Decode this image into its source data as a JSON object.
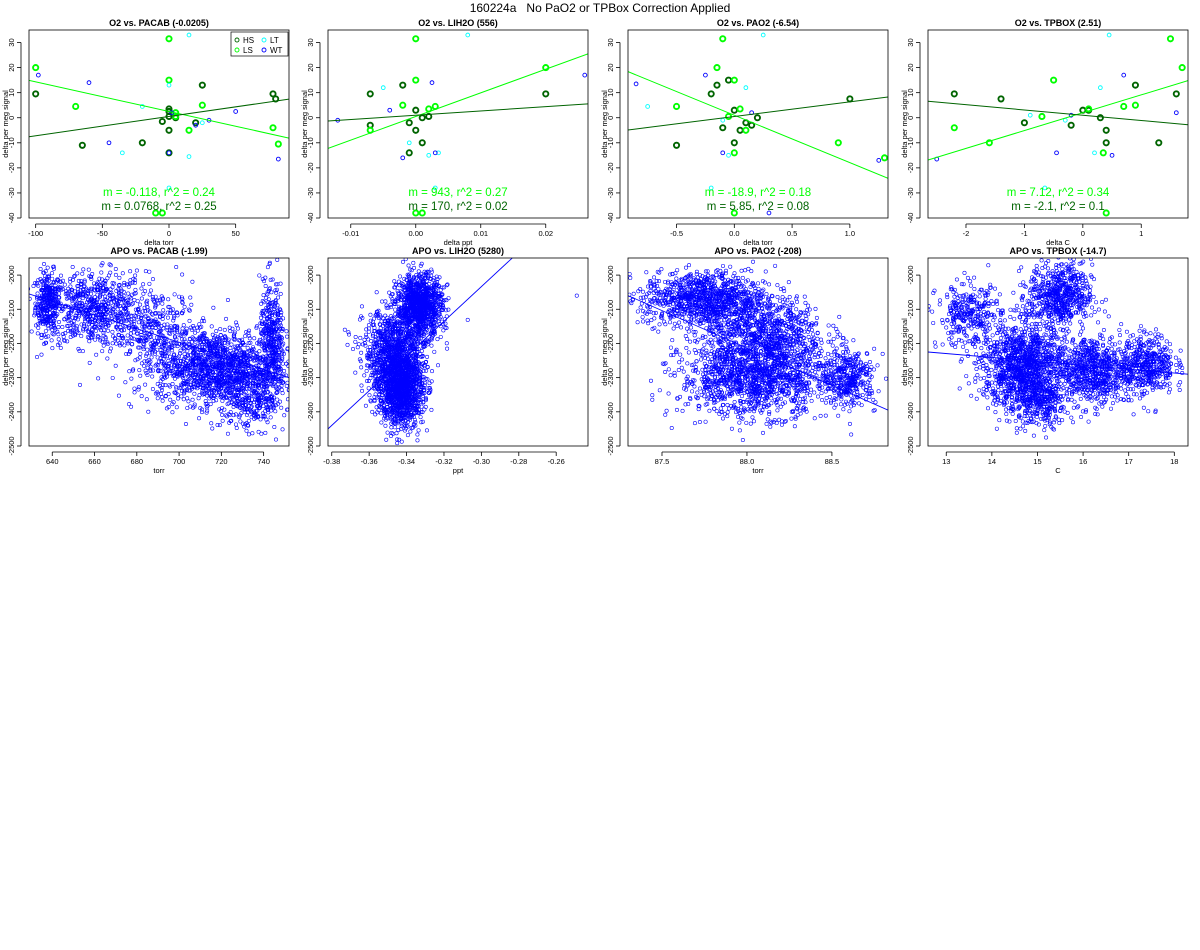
{
  "page": {
    "title": "160224a   No PaO2 or TPBox Correction Applied"
  },
  "colors": {
    "HS": "#006400",
    "LS": "#00ff00",
    "LT": "#00ffff",
    "WT": "#0000ff",
    "fit_HS": "#006400",
    "fit_LS": "#00ff00",
    "apo": "#0000ff"
  },
  "chart_data": [
    {
      "type": "scatter",
      "title": "O2 vs. PACAB (-0.0205)",
      "xlabel": "delta torr",
      "ylabel": "delta per meg signal",
      "xlim": [
        -105,
        90
      ],
      "ylim": [
        -40,
        35
      ],
      "xticks": [
        -100,
        -50,
        0,
        50
      ],
      "yticks": [
        -40,
        -30,
        -20,
        -10,
        0,
        10,
        20,
        30
      ],
      "xtick_labels": [
        "-100",
        "-50",
        "0",
        "50"
      ],
      "legend": {
        "position": "top-right",
        "entries": [
          "HS",
          "LT",
          "LS",
          "WT"
        ]
      },
      "fits": [
        {
          "label": "m = -0.118, r^2 = 0.24",
          "color": "#00ff00",
          "slope": -0.118,
          "intercept": 2.5
        },
        {
          "label": "m = 0.0768, r^2 = 0.25",
          "color": "#006400",
          "slope": 0.0768,
          "intercept": 0.5
        }
      ],
      "series": [
        {
          "name": "HS",
          "x": [
            -100,
            -65,
            -20,
            -5,
            0,
            0,
            0,
            0,
            5,
            20,
            25,
            78,
            80,
            0
          ],
          "y": [
            9.5,
            -11,
            -10,
            -1.5,
            -5,
            0.5,
            2.5,
            3.5,
            0,
            -2,
            13,
            9.5,
            7.5,
            -14
          ]
        },
        {
          "name": "LS",
          "x": [
            -100,
            -70,
            -5,
            0,
            0,
            5,
            15,
            25,
            78,
            82,
            5,
            -10
          ],
          "y": [
            20,
            4.5,
            -38,
            31.5,
            15,
            0.5,
            -5,
            5,
            -4,
            -10.5,
            2,
            -38
          ]
        },
        {
          "name": "LT",
          "x": [
            15,
            -20,
            25,
            0,
            0,
            15,
            -35
          ],
          "y": [
            33,
            4.5,
            -2,
            -28,
            13,
            -15.5,
            -14
          ]
        },
        {
          "name": "WT",
          "x": [
            -98,
            -60,
            50,
            30,
            82,
            0,
            20,
            2,
            -45
          ],
          "y": [
            17,
            14,
            2.5,
            -1,
            -16.5,
            -14,
            -3,
            2,
            -10
          ]
        }
      ]
    },
    {
      "type": "scatter",
      "title": "O2 vs. LIH2O (556)",
      "xlabel": "delta ppt",
      "ylabel": "delta per meg signal",
      "xlim": [
        -0.0135,
        0.0265
      ],
      "ylim": [
        -40,
        35
      ],
      "xticks": [
        -0.01,
        0,
        0.01,
        0.02
      ],
      "yticks": [
        -40,
        -30,
        -20,
        -10,
        0,
        10,
        20,
        30
      ],
      "xtick_labels": [
        "-0.01",
        "0.00",
        "0.01",
        "0.02"
      ],
      "fits": [
        {
          "label": "m = 943, r^2 = 0.27",
          "color": "#00ff00",
          "slope": 943,
          "intercept": 0.5
        },
        {
          "label": "m = 170, r^2 = 0.02",
          "color": "#006400",
          "slope": 170,
          "intercept": 1.0
        }
      ],
      "series": [
        {
          "name": "HS",
          "x": [
            -0.007,
            -0.002,
            -0.001,
            0,
            0,
            0.001,
            0.001,
            0.002,
            -0.001,
            0.02,
            -0.007
          ],
          "y": [
            9.5,
            13,
            -2,
            -5,
            3,
            0,
            -10,
            0.5,
            -14,
            9.5,
            -3
          ]
        },
        {
          "name": "LS",
          "x": [
            0,
            0,
            -0.002,
            0.002,
            0.003,
            0.02,
            -0.007,
            0.001,
            0
          ],
          "y": [
            31.5,
            15,
            5,
            3.5,
            4.5,
            20,
            -5,
            -38,
            -38
          ]
        },
        {
          "name": "LT",
          "x": [
            -0.005,
            0.008,
            0.002,
            -0.001,
            0.003,
            0.0035
          ],
          "y": [
            12,
            33,
            -15,
            -10,
            -28,
            -14
          ]
        },
        {
          "name": "WT",
          "x": [
            -0.012,
            -0.002,
            0.0025,
            -0.004,
            0.026,
            0.003
          ],
          "y": [
            -1,
            -16,
            14,
            3,
            17,
            -14
          ]
        }
      ]
    },
    {
      "type": "scatter",
      "title": "O2 vs. PAO2 (-6.54)",
      "xlabel": "delta torr",
      "ylabel": "delta per meg signal",
      "xlim": [
        -0.92,
        1.33
      ],
      "ylim": [
        -40,
        35
      ],
      "xticks": [
        -0.5,
        0,
        0.5,
        1.0
      ],
      "yticks": [
        -40,
        -30,
        -20,
        -10,
        0,
        10,
        20,
        30
      ],
      "xtick_labels": [
        "-0.5",
        "0.0",
        "0.5",
        "1.0"
      ],
      "fits": [
        {
          "label": "m = -18.9, r^2 = 0.18",
          "color": "#00ff00",
          "slope": -18.9,
          "intercept": 1.0
        },
        {
          "label": "m = 5.85, r^2 = 0.08",
          "color": "#006400",
          "slope": 5.85,
          "intercept": 0.5
        }
      ],
      "series": [
        {
          "name": "HS",
          "x": [
            -0.5,
            -0.15,
            -0.1,
            -0.05,
            0,
            0,
            0.05,
            0.1,
            0.15,
            0.2,
            1.0,
            -0.2
          ],
          "y": [
            -11,
            13,
            -4,
            15,
            3,
            -10,
            -5,
            -2,
            -3,
            0,
            7.5,
            9.5
          ]
        },
        {
          "name": "LS",
          "x": [
            -0.1,
            -0.5,
            -0.15,
            0,
            0,
            0.05,
            0.1,
            -0.05,
            0.9,
            1.3,
            0
          ],
          "y": [
            31.5,
            4.5,
            20,
            15,
            -14,
            3.5,
            -5,
            0.5,
            -10,
            -16,
            -38
          ]
        },
        {
          "name": "LT",
          "x": [
            -0.75,
            0.25,
            -0.2,
            0.1,
            -0.1,
            -0.05
          ],
          "y": [
            4.5,
            33,
            -28,
            12,
            -1,
            -15
          ]
        },
        {
          "name": "WT",
          "x": [
            -0.85,
            -0.25,
            -0.1,
            0.15,
            1.25,
            0.3
          ],
          "y": [
            13.5,
            17,
            -14,
            2,
            -17,
            -38
          ]
        }
      ]
    },
    {
      "type": "scatter",
      "title": "O2 vs. TPBOX (2.51)",
      "xlabel": "delta C",
      "ylabel": "delta per meg signal",
      "xlim": [
        -2.65,
        1.8
      ],
      "ylim": [
        -40,
        35
      ],
      "xticks": [
        -2,
        -1,
        0,
        1
      ],
      "yticks": [
        -40,
        -30,
        -20,
        -10,
        0,
        10,
        20,
        30
      ],
      "xtick_labels": [
        "-2",
        "-1",
        "0",
        "1"
      ],
      "fits": [
        {
          "label": "m = 7.12, r^2 = 0.34",
          "color": "#00ff00",
          "slope": 7.12,
          "intercept": 2.0
        },
        {
          "label": "m = -2.1, r^2 = 0.1",
          "color": "#006400",
          "slope": -2.1,
          "intercept": 1.0
        }
      ],
      "series": [
        {
          "name": "HS",
          "x": [
            -2.2,
            -1.4,
            -1.0,
            0,
            -0.2,
            0.3,
            0.4,
            0.4,
            0.9,
            1.3,
            1.6,
            0.1
          ],
          "y": [
            9.5,
            7.5,
            -2,
            3,
            -3,
            0,
            -5,
            -10,
            13,
            -10,
            9.5,
            3
          ]
        },
        {
          "name": "LS",
          "x": [
            1.5,
            1.7,
            -2.2,
            -1.6,
            -0.5,
            0.35,
            0.7,
            0.9,
            -0.7,
            0.1,
            0.4
          ],
          "y": [
            31.5,
            20,
            -4,
            -10,
            15,
            -14,
            4.5,
            5,
            0.5,
            3.5,
            -38
          ]
        },
        {
          "name": "LT",
          "x": [
            -0.65,
            0.45,
            0.3,
            -0.9,
            -0.3,
            0.2
          ],
          "y": [
            -28,
            33,
            12,
            1,
            -1,
            -14
          ]
        },
        {
          "name": "WT",
          "x": [
            -2.5,
            -0.45,
            0.7,
            1.6,
            0.5,
            -0.2
          ],
          "y": [
            -16.5,
            -14,
            17,
            2,
            -15,
            1
          ]
        }
      ]
    },
    {
      "type": "scatter",
      "title": "APO vs. PACAB (-1.99)",
      "xlabel": "torr",
      "ylabel": "delta per meg signal",
      "xlim": [
        629,
        752
      ],
      "ylim": [
        -2500,
        -1950
      ],
      "xticks": [
        640,
        660,
        680,
        700,
        720,
        740
      ],
      "yticks": [
        -2500,
        -2400,
        -2300,
        -2200,
        -2100,
        -2000
      ],
      "xtick_labels": [
        "640",
        "660",
        "680",
        "700",
        "720",
        "740"
      ],
      "fit_line": {
        "slope": -1.99,
        "intercept": -1.99
      },
      "clusters": [
        {
          "cx": 638,
          "cy": -2080,
          "sx": 3,
          "sy": 45,
          "n": 300
        },
        {
          "cx": 660,
          "cy": -2100,
          "sx": 12,
          "sy": 55,
          "n": 650
        },
        {
          "cx": 690,
          "cy": -2180,
          "sx": 10,
          "sy": 70,
          "n": 350
        },
        {
          "cx": 718,
          "cy": -2270,
          "sx": 14,
          "sy": 55,
          "n": 1300
        },
        {
          "cx": 744,
          "cy": -2200,
          "sx": 3,
          "sy": 90,
          "n": 400
        },
        {
          "cx": 735,
          "cy": -2370,
          "sx": 8,
          "sy": 40,
          "n": 250
        }
      ]
    },
    {
      "type": "scatter",
      "title": "APO vs. LIH2O (5280)",
      "xlabel": "ppt",
      "ylabel": "delta per meg signal",
      "xlim": [
        -0.382,
        -0.243
      ],
      "ylim": [
        -2500,
        -1950
      ],
      "xticks": [
        -0.38,
        -0.36,
        -0.34,
        -0.32,
        -0.3,
        -0.28,
        -0.26
      ],
      "yticks": [
        -2500,
        -2400,
        -2300,
        -2200,
        -2100,
        -2000
      ],
      "xtick_labels": [
        "-0.38",
        "-0.36",
        "-0.34",
        "-0.32",
        "-0.30",
        "-0.28",
        "-0.26"
      ],
      "fit_line": {
        "slope": 5280,
        "intercept": -0.342
      },
      "clusters": [
        {
          "cx": -0.333,
          "cy": -2090,
          "sx": 0.006,
          "sy": 45,
          "n": 1100
        },
        {
          "cx": -0.347,
          "cy": -2220,
          "sx": 0.008,
          "sy": 60,
          "n": 800
        },
        {
          "cx": -0.343,
          "cy": -2330,
          "sx": 0.006,
          "sy": 55,
          "n": 1300
        }
      ],
      "outliers": [
        {
          "x": -0.249,
          "y": -2060
        },
        {
          "x": -0.373,
          "y": -2160
        }
      ]
    },
    {
      "type": "scatter",
      "title": "APO vs. PAO2 (-208)",
      "xlabel": "torr",
      "ylabel": "delta per meg signal",
      "xlim": [
        87.3,
        88.83
      ],
      "ylim": [
        -2500,
        -1950
      ],
      "xticks": [
        87.5,
        88.0,
        88.5
      ],
      "yticks": [
        -2500,
        -2400,
        -2300,
        -2200,
        -2100,
        -2000
      ],
      "xtick_labels": [
        "87.5",
        "88.0",
        "88.5"
      ],
      "fit_line": {
        "slope": -208,
        "intercept": 88.05
      },
      "clusters": [
        {
          "cx": 87.75,
          "cy": -2070,
          "sx": 0.18,
          "sy": 40,
          "n": 1000
        },
        {
          "cx": 88.1,
          "cy": -2170,
          "sx": 0.18,
          "sy": 55,
          "n": 800
        },
        {
          "cx": 88.05,
          "cy": -2300,
          "sx": 0.22,
          "sy": 55,
          "n": 1300
        },
        {
          "cx": 88.6,
          "cy": -2300,
          "sx": 0.08,
          "sy": 40,
          "n": 350
        }
      ]
    },
    {
      "type": "scatter",
      "title": "APO vs. TPBOX (-14.7)",
      "xlabel": "C",
      "ylabel": "delta per meg signal",
      "xlim": [
        12.6,
        18.3
      ],
      "ylim": [
        -2500,
        -1950
      ],
      "xticks": [
        13,
        14,
        15,
        16,
        17,
        18
      ],
      "yticks": [
        -2500,
        -2400,
        -2300,
        -2200,
        -2100,
        -2000
      ],
      "xtick_labels": [
        "13",
        "14",
        "15",
        "16",
        "17",
        "18"
      ],
      "fit_line": {
        "slope": -14.7,
        "intercept": -2260
      },
      "clusters": [
        {
          "cx": 13.5,
          "cy": -2120,
          "sx": 0.35,
          "sy": 45,
          "n": 300
        },
        {
          "cx": 14.7,
          "cy": -2270,
          "sx": 0.45,
          "sy": 65,
          "n": 1300
        },
        {
          "cx": 15.5,
          "cy": -2060,
          "sx": 0.35,
          "sy": 45,
          "n": 600
        },
        {
          "cx": 16.2,
          "cy": -2280,
          "sx": 0.4,
          "sy": 50,
          "n": 700
        },
        {
          "cx": 17.4,
          "cy": -2260,
          "sx": 0.3,
          "sy": 45,
          "n": 450
        },
        {
          "cx": 15.1,
          "cy": -2380,
          "sx": 0.25,
          "sy": 35,
          "n": 200
        }
      ]
    }
  ]
}
